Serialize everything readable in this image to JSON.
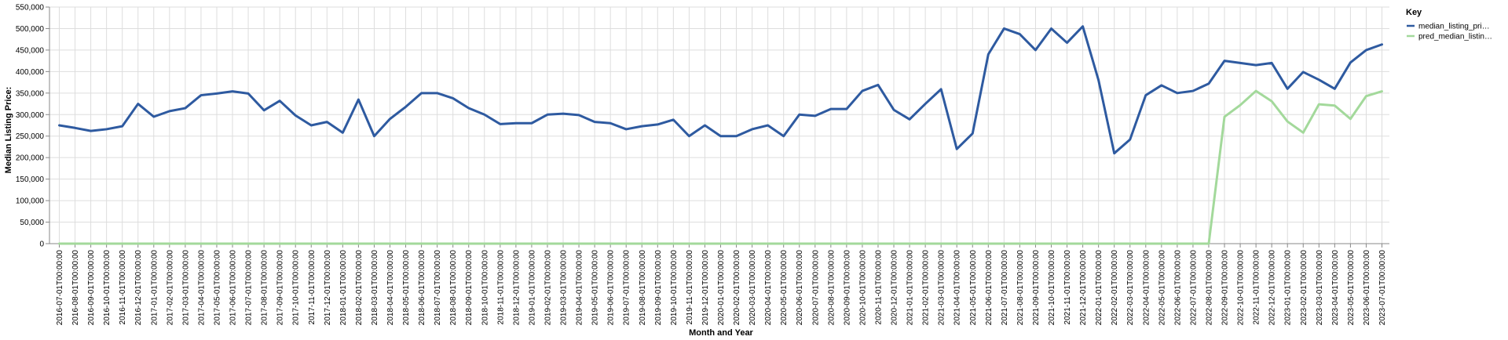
{
  "chart_data": {
    "type": "line",
    "xlabel": "Month and Year",
    "ylabel": "Median Listing Price:",
    "ylim": [
      0,
      550000
    ],
    "yticks": [
      0,
      50000,
      100000,
      150000,
      200000,
      250000,
      300000,
      350000,
      400000,
      450000,
      500000,
      550000
    ],
    "ytick_labels": [
      "0",
      "50,000",
      "100,000",
      "150,000",
      "200,000",
      "250,000",
      "300,000",
      "350,000",
      "400,000",
      "450,000",
      "500,000",
      "550,000"
    ],
    "grid": true,
    "legend": {
      "title": "Key",
      "placement": "right"
    },
    "x": [
      "2016-07-01T00:00:00",
      "2016-08-01T00:00:00",
      "2016-09-01T00:00:00",
      "2016-10-01T00:00:00",
      "2016-11-01T00:00:00",
      "2016-12-01T00:00:00",
      "2017-01-01T00:00:00",
      "2017-02-01T00:00:00",
      "2017-03-01T00:00:00",
      "2017-04-01T00:00:00",
      "2017-05-01T00:00:00",
      "2017-06-01T00:00:00",
      "2017-07-01T00:00:00",
      "2017-08-01T00:00:00",
      "2017-09-01T00:00:00",
      "2017-10-01T00:00:00",
      "2017-11-01T00:00:00",
      "2017-12-01T00:00:00",
      "2018-01-01T00:00:00",
      "2018-02-01T00:00:00",
      "2018-03-01T00:00:00",
      "2018-04-01T00:00:00",
      "2018-05-01T00:00:00",
      "2018-06-01T00:00:00",
      "2018-07-01T00:00:00",
      "2018-08-01T00:00:00",
      "2018-09-01T00:00:00",
      "2018-10-01T00:00:00",
      "2018-11-01T00:00:00",
      "2018-12-01T00:00:00",
      "2019-01-01T00:00:00",
      "2019-02-01T00:00:00",
      "2019-03-01T00:00:00",
      "2019-04-01T00:00:00",
      "2019-05-01T00:00:00",
      "2019-06-01T00:00:00",
      "2019-07-01T00:00:00",
      "2019-08-01T00:00:00",
      "2019-09-01T00:00:00",
      "2019-10-01T00:00:00",
      "2019-11-01T00:00:00",
      "2019-12-01T00:00:00",
      "2020-01-01T00:00:00",
      "2020-02-01T00:00:00",
      "2020-03-01T00:00:00",
      "2020-04-01T00:00:00",
      "2020-05-01T00:00:00",
      "2020-06-01T00:00:00",
      "2020-07-01T00:00:00",
      "2020-08-01T00:00:00",
      "2020-09-01T00:00:00",
      "2020-10-01T00:00:00",
      "2020-11-01T00:00:00",
      "2020-12-01T00:00:00",
      "2021-01-01T00:00:00",
      "2021-02-01T00:00:00",
      "2021-03-01T00:00:00",
      "2021-04-01T00:00:00",
      "2021-05-01T00:00:00",
      "2021-06-01T00:00:00",
      "2021-07-01T00:00:00",
      "2021-08-01T00:00:00",
      "2021-09-01T00:00:00",
      "2021-10-01T00:00:00",
      "2021-11-01T00:00:00",
      "2021-12-01T00:00:00",
      "2022-01-01T00:00:00",
      "2022-02-01T00:00:00",
      "2022-03-01T00:00:00",
      "2022-04-01T00:00:00",
      "2022-05-01T00:00:00",
      "2022-06-01T00:00:00",
      "2022-07-01T00:00:00",
      "2022-08-01T00:00:00",
      "2022-09-01T00:00:00",
      "2022-10-01T00:00:00",
      "2022-11-01T00:00:00",
      "2022-12-01T00:00:00",
      "2023-01-01T00:00:00",
      "2023-02-01T00:00:00",
      "2023-03-01T00:00:00",
      "2023-04-01T00:00:00",
      "2023-05-01T00:00:00",
      "2023-06-01T00:00:00",
      "2023-07-01T00:00:00"
    ],
    "series": [
      {
        "name": "median_listing_pri…",
        "color": "#2e5aa0",
        "values": [
          275000,
          269000,
          262000,
          266000,
          273000,
          325000,
          295000,
          308000,
          315000,
          345000,
          349000,
          354000,
          349000,
          310000,
          332000,
          298000,
          275000,
          283000,
          258000,
          335000,
          250000,
          290000,
          318000,
          350000,
          350000,
          338000,
          315000,
          300000,
          278000,
          280000,
          280000,
          300000,
          302000,
          299000,
          283000,
          280000,
          266000,
          273000,
          277000,
          288000,
          250000,
          275000,
          250000,
          250000,
          266000,
          275000,
          250000,
          300000,
          297000,
          313000,
          313000,
          355000,
          369000,
          311000,
          289000,
          325000,
          359000,
          220000,
          256000,
          440000,
          500000,
          487000,
          450000,
          500000,
          467000,
          505000,
          380000,
          210000,
          242000,
          345000,
          368000,
          350000,
          355000,
          372000,
          425000,
          420000,
          415000,
          420000,
          360000,
          399000,
          381000,
          360000,
          421000,
          450000,
          463000
        ]
      },
      {
        "name": "pred_median_listin…",
        "color": "#a3d99b",
        "values": [
          0,
          0,
          0,
          0,
          0,
          0,
          0,
          0,
          0,
          0,
          0,
          0,
          0,
          0,
          0,
          0,
          0,
          0,
          0,
          0,
          0,
          0,
          0,
          0,
          0,
          0,
          0,
          0,
          0,
          0,
          0,
          0,
          0,
          0,
          0,
          0,
          0,
          0,
          0,
          0,
          0,
          0,
          0,
          0,
          0,
          0,
          0,
          0,
          0,
          0,
          0,
          0,
          0,
          0,
          0,
          0,
          0,
          0,
          0,
          0,
          0,
          0,
          0,
          0,
          0,
          0,
          0,
          0,
          0,
          0,
          0,
          0,
          0,
          0,
          295000,
          322000,
          355000,
          331000,
          284000,
          258000,
          324000,
          321000,
          290000,
          343000,
          354000
        ]
      }
    ]
  }
}
